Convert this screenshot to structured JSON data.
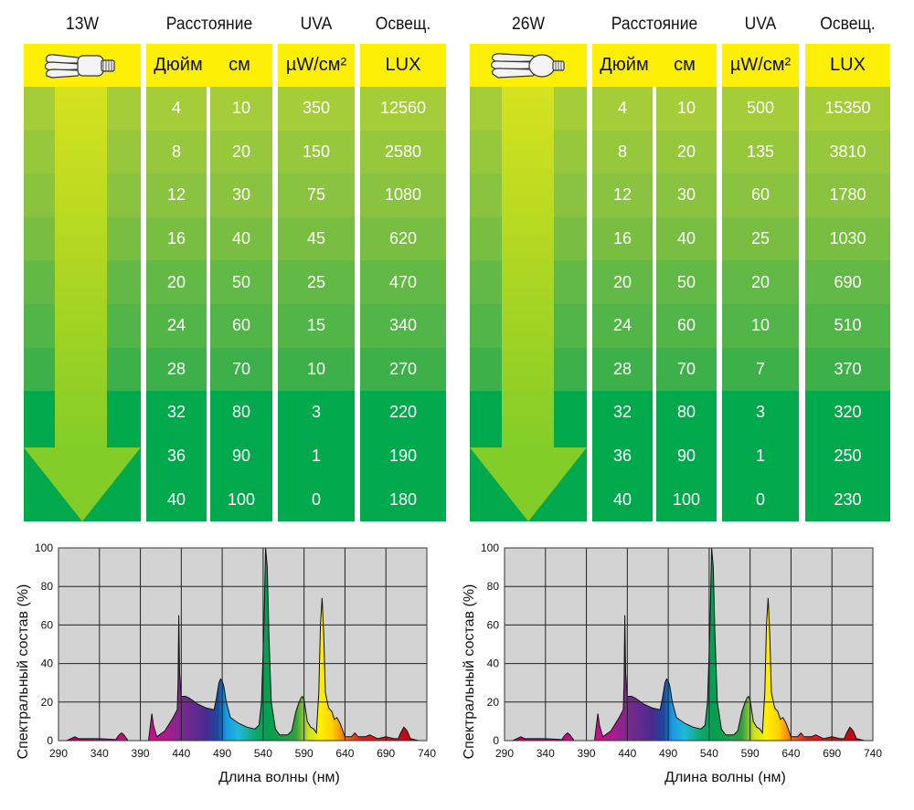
{
  "tables": [
    {
      "wattage": "13W",
      "icon": "cfl-bulb-small-icon",
      "headers": {
        "distance": "Расстояние",
        "uva": "UVA",
        "lux": "Освещ.",
        "inch": "Дюйм",
        "cm": "см",
        "uva_unit": "µW/см²",
        "lux_unit": "LUX"
      },
      "rows": [
        {
          "inch": "4",
          "cm": "10",
          "uva": "350",
          "lux": "12560"
        },
        {
          "inch": "8",
          "cm": "20",
          "uva": "150",
          "lux": "2580"
        },
        {
          "inch": "12",
          "cm": "30",
          "uva": "75",
          "lux": "1080"
        },
        {
          "inch": "16",
          "cm": "40",
          "uva": "45",
          "lux": "620"
        },
        {
          "inch": "20",
          "cm": "50",
          "uva": "25",
          "lux": "470"
        },
        {
          "inch": "24",
          "cm": "60",
          "uva": "15",
          "lux": "340"
        },
        {
          "inch": "28",
          "cm": "70",
          "uva": "10",
          "lux": "270"
        },
        {
          "inch": "32",
          "cm": "80",
          "uva": "3",
          "lux": "220"
        },
        {
          "inch": "36",
          "cm": "90",
          "uva": "1",
          "lux": "190"
        },
        {
          "inch": "40",
          "cm": "100",
          "uva": "0",
          "lux": "180"
        }
      ]
    },
    {
      "wattage": "26W",
      "icon": "cfl-bulb-large-icon",
      "headers": {
        "distance": "Расстояние",
        "uva": "UVA",
        "lux": "Освещ.",
        "inch": "Дюйм",
        "cm": "см",
        "uva_unit": "µW/см²",
        "lux_unit": "LUX"
      },
      "rows": [
        {
          "inch": "4",
          "cm": "10",
          "uva": "500",
          "lux": "15350"
        },
        {
          "inch": "8",
          "cm": "20",
          "uva": "135",
          "lux": "3810"
        },
        {
          "inch": "12",
          "cm": "30",
          "uva": "60",
          "lux": "1780"
        },
        {
          "inch": "16",
          "cm": "40",
          "uva": "25",
          "lux": "1030"
        },
        {
          "inch": "20",
          "cm": "50",
          "uva": "20",
          "lux": "690"
        },
        {
          "inch": "24",
          "cm": "60",
          "uva": "10",
          "lux": "510"
        },
        {
          "inch": "28",
          "cm": "70",
          "uva": "7",
          "lux": "370"
        },
        {
          "inch": "32",
          "cm": "80",
          "uva": "3",
          "lux": "320"
        },
        {
          "inch": "36",
          "cm": "90",
          "uva": "1",
          "lux": "250"
        },
        {
          "inch": "40",
          "cm": "100",
          "uva": "0",
          "lux": "230"
        }
      ]
    }
  ],
  "colors": {
    "header_yellow": "#fdef06",
    "row_greens": [
      "#a5cd39",
      "#97c73c",
      "#89c33f",
      "#78bf41",
      "#63b946",
      "#52b548",
      "#3db049",
      "#00a94c",
      "#00a94c",
      "#00a94c"
    ],
    "arrow": "#82cd28",
    "arrow_shaft_top": "#d6e21f",
    "plot_bg": "#d3d3d3",
    "grid": "#222222"
  },
  "chart_data": [
    {
      "type": "area",
      "title": "13W",
      "xlabel": "Длина волны (нм)",
      "ylabel": "Спектральный состав (%)",
      "xlim": [
        290,
        740
      ],
      "ylim": [
        0,
        100
      ],
      "xticks": [
        "290",
        "340",
        "390",
        "440",
        "490",
        "540",
        "590",
        "640",
        "690",
        "740"
      ],
      "yticks": [
        "0",
        "20",
        "40",
        "60",
        "80",
        "100"
      ],
      "grid": true,
      "x": [
        290,
        300,
        305,
        310,
        315,
        320,
        340,
        360,
        364,
        367,
        370,
        375,
        390,
        400,
        404,
        406,
        410,
        420,
        430,
        435,
        436,
        437,
        438,
        440,
        445,
        450,
        460,
        470,
        480,
        483,
        486,
        488,
        490,
        492,
        495,
        500,
        510,
        520,
        530,
        535,
        538,
        541,
        543,
        545,
        547,
        550,
        555,
        560,
        570,
        575,
        580,
        584,
        586,
        588,
        590,
        594,
        598,
        602,
        605,
        608,
        610,
        612,
        614,
        616,
        620,
        624,
        627,
        630,
        634,
        640,
        648,
        652,
        656,
        665,
        670,
        680,
        690,
        700,
        705,
        708,
        712,
        716,
        720,
        730,
        740
      ],
      "y": [
        0,
        0,
        1,
        2,
        1,
        1,
        1,
        0.5,
        3,
        4,
        3,
        0,
        0,
        0,
        14,
        8,
        2,
        5,
        12,
        16,
        30,
        65,
        35,
        23,
        23,
        22,
        19,
        17,
        16,
        22,
        30,
        32,
        31,
        28,
        20,
        12,
        9,
        7,
        6,
        8,
        20,
        60,
        100,
        90,
        55,
        20,
        6,
        3,
        3,
        5,
        15,
        20,
        22,
        23,
        21,
        10,
        7,
        6,
        4,
        25,
        60,
        74,
        55,
        25,
        17,
        15,
        11,
        12,
        9,
        2,
        2,
        4,
        2,
        2,
        3,
        1,
        2,
        1,
        1,
        4,
        7,
        5,
        1,
        0,
        0
      ]
    },
    {
      "type": "area",
      "title": "26W",
      "xlabel": "Длина волны (нм)",
      "ylabel": "Спектральный состав (%)",
      "xlim": [
        290,
        740
      ],
      "ylim": [
        0,
        100
      ],
      "xticks": [
        "290",
        "340",
        "390",
        "440",
        "490",
        "540",
        "590",
        "640",
        "690",
        "740"
      ],
      "yticks": [
        "0",
        "20",
        "40",
        "60",
        "80",
        "100"
      ],
      "grid": true,
      "x": [
        290,
        300,
        305,
        310,
        315,
        320,
        340,
        360,
        364,
        367,
        370,
        375,
        390,
        400,
        404,
        406,
        410,
        420,
        430,
        435,
        436,
        437,
        438,
        440,
        445,
        450,
        460,
        470,
        480,
        483,
        486,
        488,
        490,
        492,
        495,
        500,
        510,
        520,
        530,
        535,
        538,
        541,
        543,
        545,
        547,
        550,
        555,
        560,
        570,
        575,
        580,
        584,
        586,
        588,
        590,
        594,
        598,
        602,
        605,
        608,
        610,
        612,
        614,
        616,
        620,
        624,
        627,
        630,
        634,
        640,
        648,
        652,
        656,
        665,
        670,
        680,
        690,
        700,
        705,
        708,
        712,
        716,
        720,
        730,
        740
      ],
      "y": [
        0,
        0,
        1,
        2,
        1,
        1,
        1,
        0.5,
        3,
        4,
        3,
        0,
        0,
        0,
        14,
        8,
        2,
        5,
        12,
        16,
        30,
        65,
        35,
        23,
        23,
        22,
        19,
        17,
        16,
        22,
        30,
        32,
        31,
        28,
        20,
        12,
        9,
        7,
        6,
        8,
        20,
        60,
        100,
        90,
        55,
        20,
        6,
        3,
        3,
        5,
        15,
        20,
        22,
        23,
        21,
        10,
        7,
        6,
        4,
        25,
        60,
        74,
        55,
        25,
        17,
        15,
        11,
        12,
        9,
        2,
        2,
        4,
        2,
        2,
        3,
        1,
        2,
        1,
        1,
        4,
        7,
        5,
        1,
        0,
        0
      ]
    }
  ]
}
